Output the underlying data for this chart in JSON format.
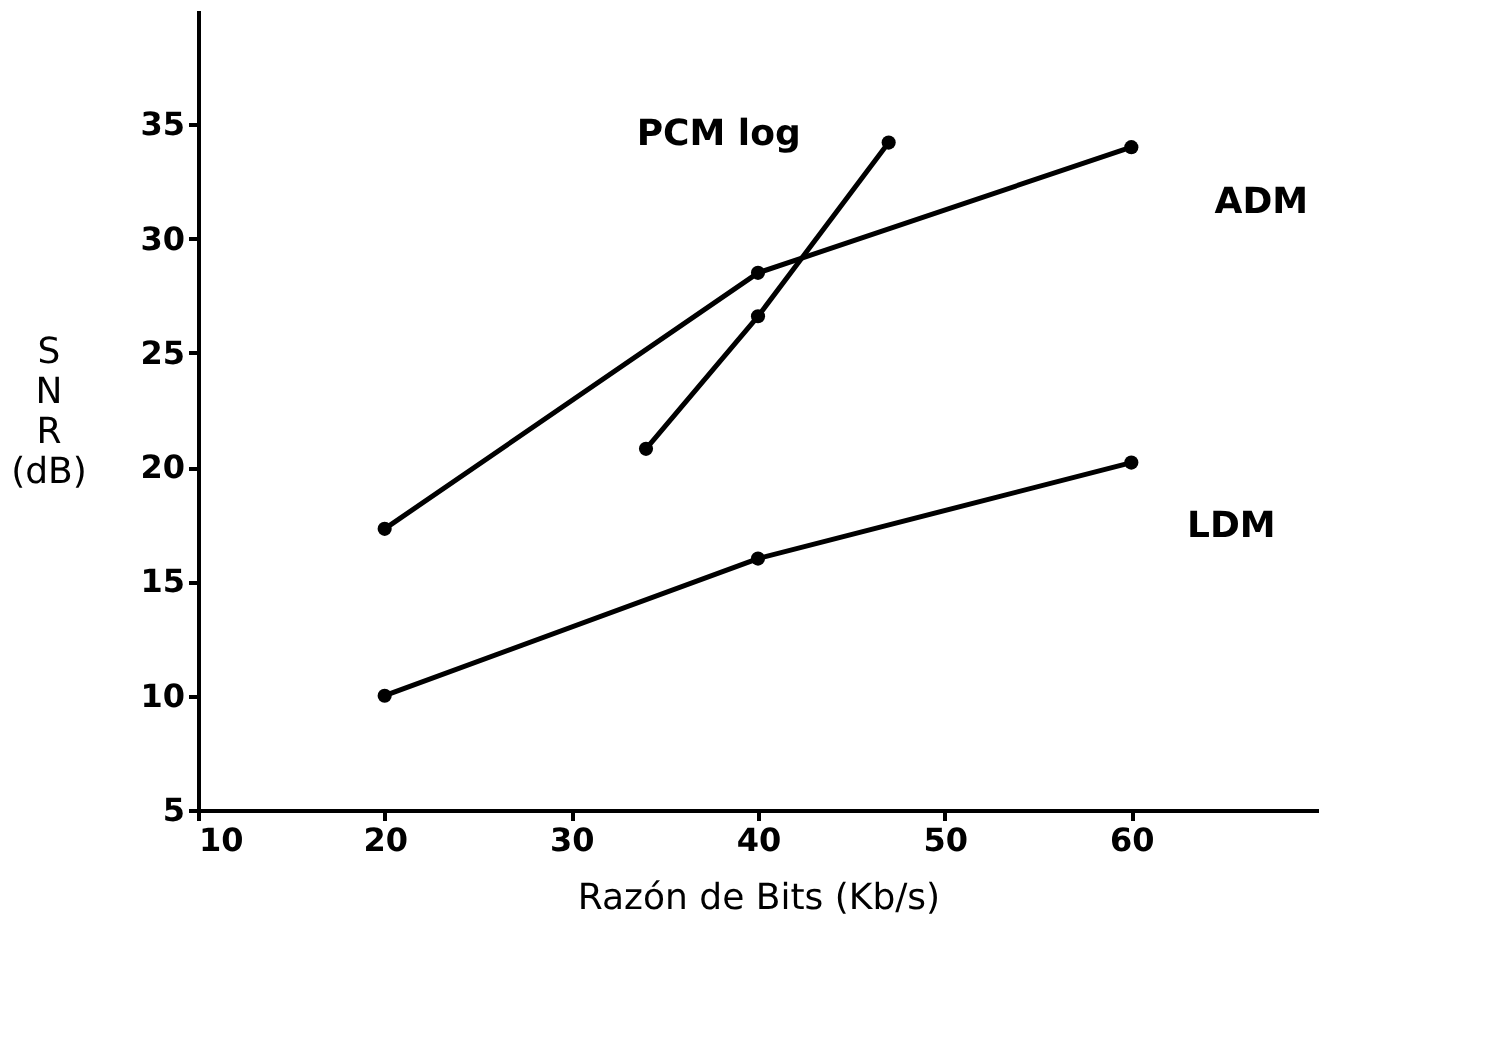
{
  "chart_data": {
    "type": "line",
    "xlabel": "Razón  de  Bits   (Kb/s)",
    "ylabel": "S\nN\nR\n(dB)",
    "series": [
      {
        "name": "PCM log",
        "color": "#000000",
        "x": [
          34,
          40,
          47
        ],
        "values": [
          20.8,
          26.6,
          34.2
        ]
      },
      {
        "name": "ADM",
        "color": "#000000",
        "x": [
          20,
          40,
          60
        ],
        "values": [
          17.3,
          28.5,
          34
        ]
      },
      {
        "name": "LDM",
        "color": "#000000",
        "x": [
          20,
          40,
          60
        ],
        "values": [
          10,
          16,
          20.2
        ]
      }
    ],
    "xlim": [
      10,
      70
    ],
    "ylim": [
      5,
      40
    ],
    "xticks": [
      10,
      20,
      30,
      40,
      50,
      60
    ],
    "yticks": [
      5,
      10,
      15,
      20,
      25,
      30,
      35
    ],
    "grid": false,
    "marker": "circle",
    "line_style": "solid"
  }
}
